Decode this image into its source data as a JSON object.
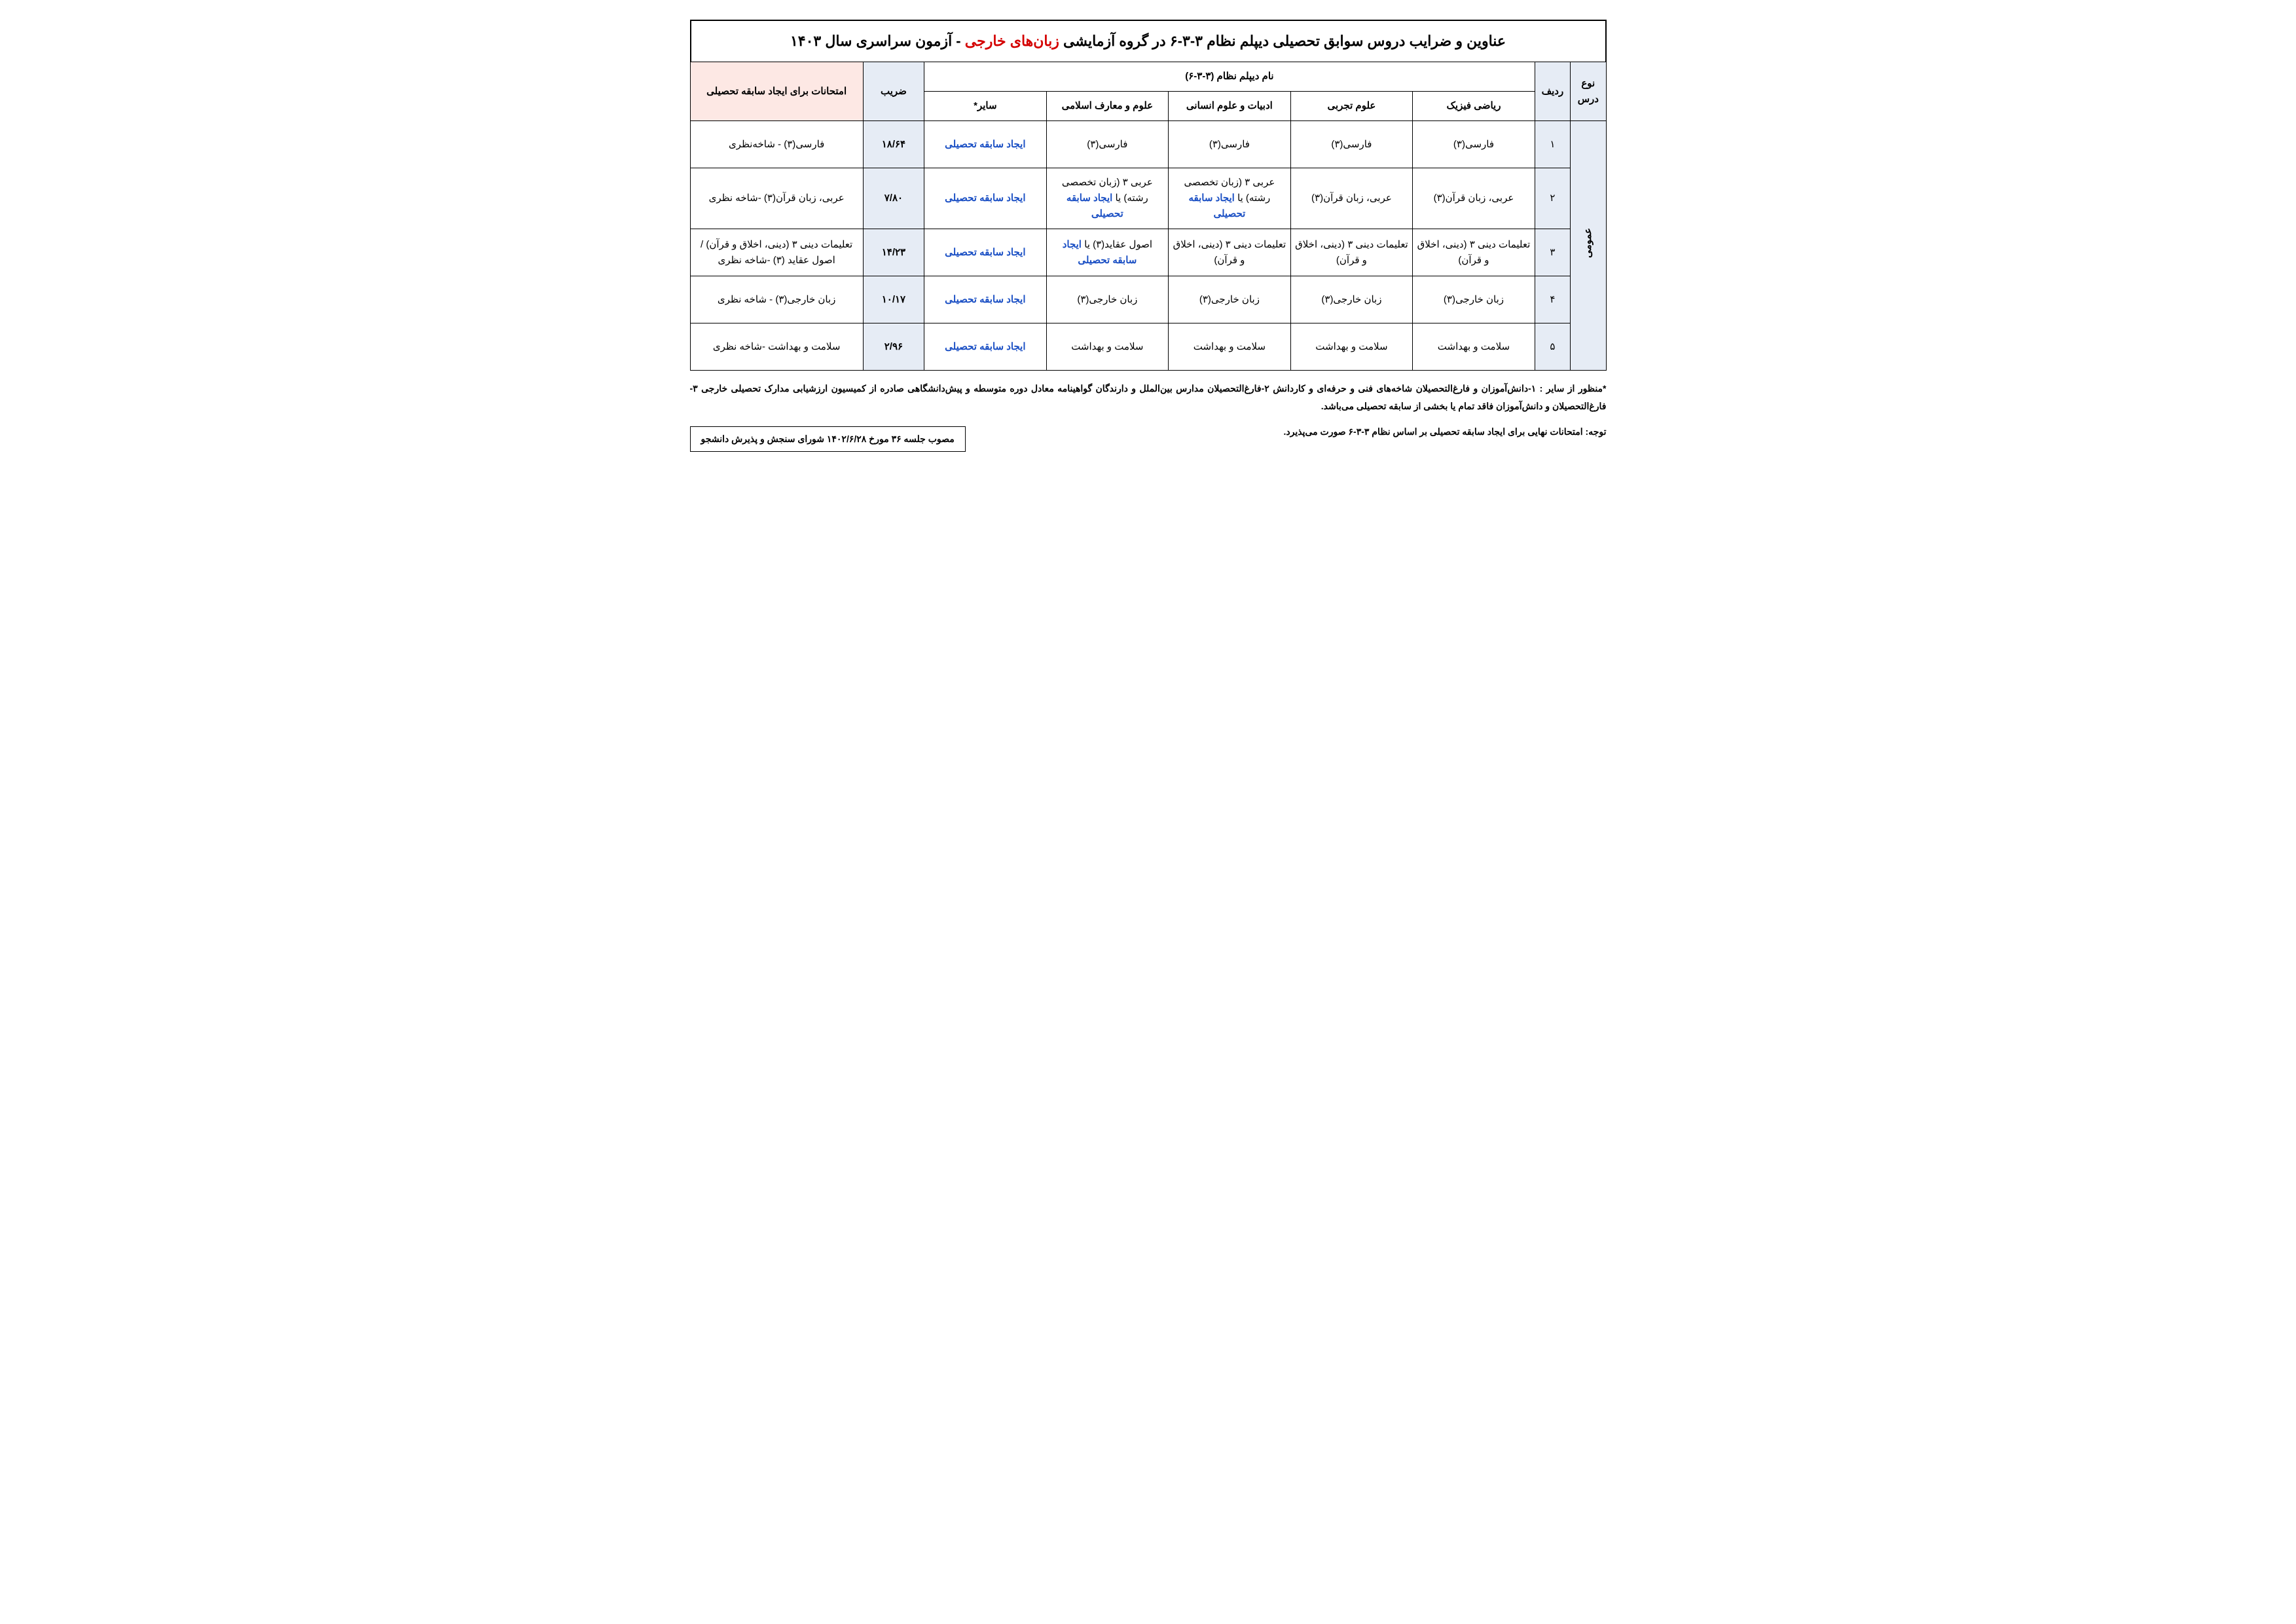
{
  "title_pre": "عناوین و ضرایب دروس سوابق تحصیلی دیپلم نظام ۳-۳-۶ در گروه آزمایشی ",
  "title_hl": "زبان‌های خارجی",
  "title_post": " - آزمون سراسری سال ۱۴۰۳",
  "headers": {
    "type": "نوع درس",
    "row": "ردیف",
    "diploma_group": "نام دیپلم نظام (۳-۳-۶)",
    "math": "ریاضی فیزیک",
    "sci": "علوم تجربی",
    "hum": "ادبیات و علوم انسانی",
    "isl": "علوم و معارف اسلامی",
    "other": "سایر*",
    "coef": "ضریب",
    "exam": "امتحانات برای ایجاد سابقه تحصیلی"
  },
  "type_label": "عمومی",
  "rows": [
    {
      "n": "۱",
      "math": "فارسی(۳)",
      "sci": "فارسی(۳)",
      "hum": "فارسی(۳)",
      "isl": "فارسی(۳)",
      "other": "ایجاد سابقه تحصیلی",
      "coef": "۱۸/۶۴",
      "exam": "فارسی(۳) - شاخه‌نظری"
    },
    {
      "n": "۲",
      "math": "عربی، زبان قرآن(۳)",
      "sci": "عربی، زبان قرآن(۳)",
      "hum": "عربی ۳ (زبان تخصصی رشته) یا ایجاد سابقه تحصیلی",
      "isl": "عربی ۳ (زبان تخصصی رشته) یا ایجاد سابقه تحصیلی",
      "other": "ایجاد سابقه تحصیلی",
      "coef": "۷/۸۰",
      "exam": "عربی، زبان قرآن(۳) -شاخه نظری"
    },
    {
      "n": "۳",
      "math": "تعلیمات دینی ۳ (دینی، اخلاق و قرآن)",
      "sci": "تعلیمات دینی ۳ (دینی، اخلاق و قرآن)",
      "hum": "تعلیمات دینی ۳ (دینی، اخلاق و قرآن)",
      "isl": "اصول عقاید(۳) یا ایجاد سابقه تحصیلی",
      "other": "ایجاد سابقه تحصیلی",
      "coef": "۱۴/۲۳",
      "exam": "تعلیمات دینی ۳ (دینی، اخلاق و قرآن) / اصول عقاید (۳) -شاخه نظری"
    },
    {
      "n": "۴",
      "math": "زبان خارجی(۳)",
      "sci": "زبان خارجی(۳)",
      "hum": "زبان خارجی(۳)",
      "isl": "زبان خارجی(۳)",
      "other": "ایجاد سابقه تحصیلی",
      "coef": "۱۰/۱۷",
      "exam": "زبان خارجی(۳) - شاخه نظری"
    },
    {
      "n": "۵",
      "math": "سلامت و بهداشت",
      "sci": "سلامت و بهداشت",
      "hum": "سلامت و بهداشت",
      "isl": "سلامت و بهداشت",
      "other": "ایجاد سابقه تحصیلی",
      "coef": "۲/۹۶",
      "exam": "سلامت و بهداشت -شاخه نظری"
    }
  ],
  "footnote": "*منظور از سایر : ۱-دانش‌آموزان و فارغ‌التحصیلان شاخه‌های فنی و حرفه‌ای و کاردانش ۲-فارغ‌التحصیلان مدارس بین‌الملل و دارندگان گواهینامه معادل دوره متوسطه و پیش‌دانشگاهی صادره از کمیسیون ارزشیابی مدارک تحصیلی خارجی ۳- فارغ‌التحصیلان و دانش‌آموزان فاقد تمام یا بخشی از سابقه تحصیلی می‌باشد.",
  "note": "توجه: امتحانات نهایی برای ایجاد سابقه تحصیلی بر اساس نظام ۳-۳-۶ صورت می‌پذیرد.",
  "approval": "مصوب جلسه ۳۶ مورخ ۱۴۰۲/۶/۲۸ شورای سنجش و پذیرش دانشجو",
  "colors": {
    "header_bg": "#e6ecf5",
    "exam_bg": "#fde8e4",
    "link_color": "#1a4fc4",
    "highlight_color": "#d40000",
    "border_color": "#000000",
    "page_bg": "#ffffff"
  }
}
